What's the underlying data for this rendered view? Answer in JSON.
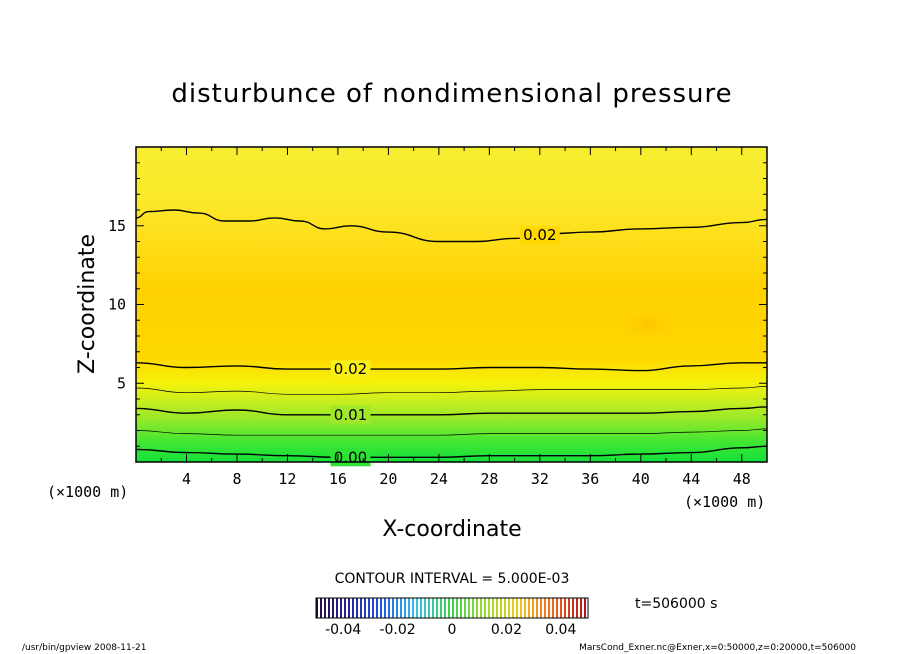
{
  "chart_data": {
    "type": "heatmap",
    "title": "disturbunce of nondimensional pressure",
    "xlabel": "X-coordinate",
    "ylabel": "Z-coordinate",
    "x_unit": "(×1000 m)",
    "y_unit": "(×1000 m)",
    "xlim": [
      0,
      50
    ],
    "ylim": [
      0,
      20
    ],
    "x_ticks": [
      "4",
      "8",
      "12",
      "16",
      "20",
      "24",
      "28",
      "32",
      "36",
      "40",
      "44",
      "48"
    ],
    "y_ticks": [
      "5",
      "10",
      "15"
    ],
    "x_tick_values": [
      4,
      8,
      12,
      16,
      20,
      24,
      28,
      32,
      36,
      40,
      44,
      48
    ],
    "y_tick_values": [
      5,
      10,
      15
    ],
    "contour_interval_label": "CONTOUR INTERVAL = 5.000E-03",
    "contour_interval": 0.005,
    "colorbar": {
      "min": -0.05,
      "max": 0.05,
      "ticks": [
        "-0.04",
        "-0.02",
        "0",
        "0.02",
        "0.04"
      ],
      "tick_values": [
        -0.04,
        -0.02,
        0,
        0.02,
        0.04
      ]
    },
    "contours": [
      {
        "level": 0.0,
        "label": "0.00",
        "labeled": true,
        "x": [
          0,
          4,
          8,
          12,
          16,
          20,
          24,
          28,
          32,
          36,
          40,
          44,
          48,
          50
        ],
        "z": [
          0.8,
          0.6,
          0.5,
          0.4,
          0.3,
          0.3,
          0.3,
          0.4,
          0.4,
          0.4,
          0.5,
          0.6,
          0.9,
          1.0
        ]
      },
      {
        "level": 0.005,
        "label": "",
        "labeled": false,
        "x": [
          0,
          4,
          8,
          12,
          16,
          20,
          24,
          28,
          32,
          36,
          40,
          44,
          48,
          50
        ],
        "z": [
          2.0,
          1.8,
          1.7,
          1.7,
          1.7,
          1.7,
          1.7,
          1.8,
          1.8,
          1.8,
          1.8,
          1.9,
          2.0,
          2.1
        ]
      },
      {
        "level": 0.01,
        "label": "0.01",
        "labeled": true,
        "x": [
          0,
          4,
          8,
          12,
          16,
          20,
          24,
          28,
          32,
          36,
          40,
          44,
          48,
          50
        ],
        "z": [
          3.4,
          3.1,
          3.3,
          3.0,
          3.0,
          3.0,
          3.0,
          3.1,
          3.1,
          3.1,
          3.1,
          3.2,
          3.4,
          3.5
        ]
      },
      {
        "level": 0.015,
        "label": "",
        "labeled": false,
        "x": [
          0,
          4,
          8,
          12,
          16,
          20,
          24,
          28,
          32,
          36,
          40,
          44,
          48,
          50
        ],
        "z": [
          4.7,
          4.4,
          4.5,
          4.3,
          4.3,
          4.4,
          4.4,
          4.5,
          4.6,
          4.6,
          4.6,
          4.6,
          4.7,
          4.8
        ]
      },
      {
        "level": 0.02,
        "label": "0.02",
        "labeled": true,
        "x": [
          0,
          4,
          8,
          12,
          16,
          20,
          24,
          28,
          32,
          36,
          40,
          44,
          48,
          50
        ],
        "z": [
          6.3,
          6.0,
          6.1,
          5.9,
          5.9,
          5.9,
          5.9,
          6.0,
          6.0,
          5.9,
          5.8,
          6.1,
          6.3,
          6.3
        ]
      },
      {
        "level": 0.02,
        "label": "0.02",
        "labeled": true,
        "x": [
          0,
          1,
          3,
          5,
          7,
          9,
          11,
          13,
          15,
          17,
          20,
          24,
          27,
          30,
          33,
          36,
          40,
          44,
          48,
          50
        ],
        "z": [
          15.5,
          15.9,
          16.0,
          15.8,
          15.3,
          15.3,
          15.5,
          15.3,
          14.8,
          15.0,
          14.6,
          14.0,
          14.0,
          14.2,
          14.5,
          14.6,
          14.8,
          14.9,
          15.2,
          15.4
        ]
      }
    ],
    "t_label": "t=506000 s"
  },
  "footer": {
    "left": "/usr/bin/gpview   2008-11-21",
    "right": "MarsCond_Exner.nc@Exner,x=0:50000,z=0:20000,t=506000"
  }
}
